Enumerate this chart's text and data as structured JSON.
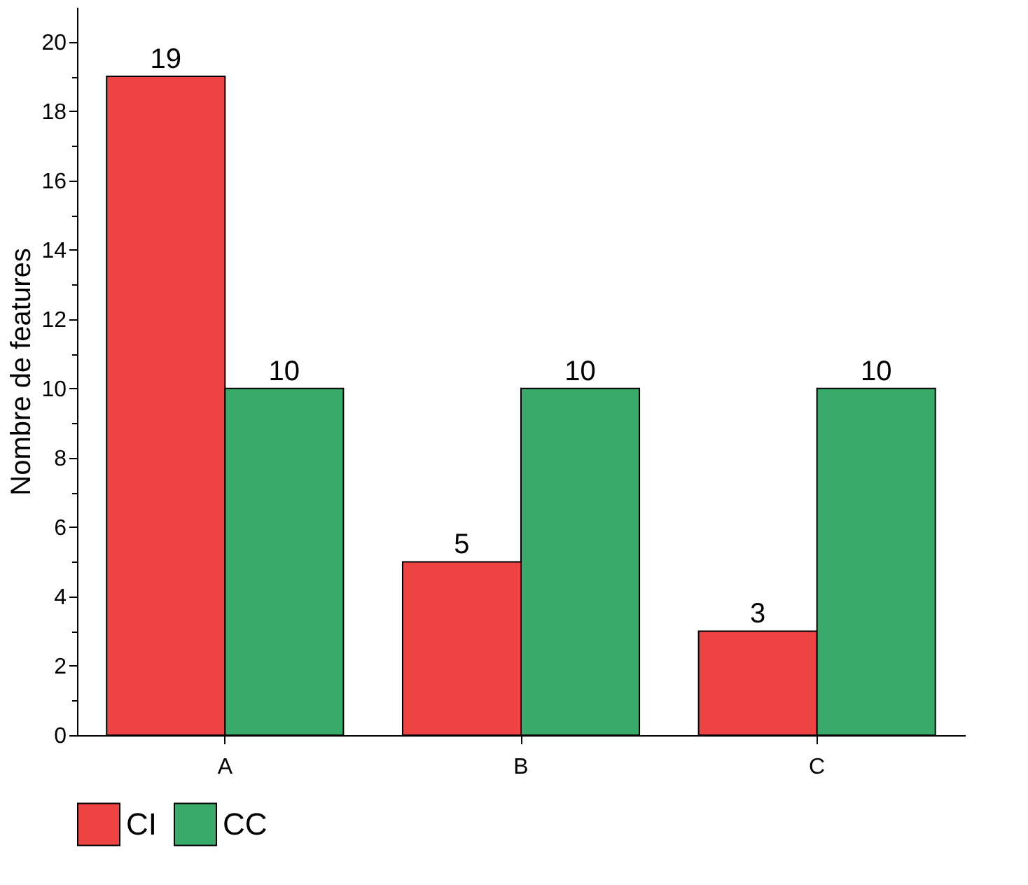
{
  "chart_data": {
    "type": "bar",
    "ylabel": "Nombre de features",
    "categories": [
      "A",
      "B",
      "C"
    ],
    "series": [
      {
        "name": "CI",
        "color": "#ef4444",
        "values": [
          19,
          5,
          3
        ]
      },
      {
        "name": "CC",
        "color": "#3aaa6a",
        "values": [
          10,
          10,
          10
        ]
      }
    ],
    "ylim": [
      0,
      21
    ],
    "yticks": [
      0,
      {
        "value": 1,
        "label": null
      },
      2,
      {
        "value": 3,
        "label": null
      },
      4,
      {
        "value": 5,
        "label": null
      },
      6,
      {
        "value": 7,
        "label": null
      },
      8,
      {
        "value": 9,
        "label": null
      },
      10,
      {
        "value": 11,
        "label": null
      },
      12,
      {
        "value": 13,
        "label": null
      },
      14,
      {
        "value": 15,
        "label": null
      },
      16,
      {
        "value": 17,
        "label": null
      },
      18,
      {
        "value": 19,
        "label": null
      },
      20
    ],
    "data_labels": true,
    "grid": false,
    "legend": "bottom"
  }
}
